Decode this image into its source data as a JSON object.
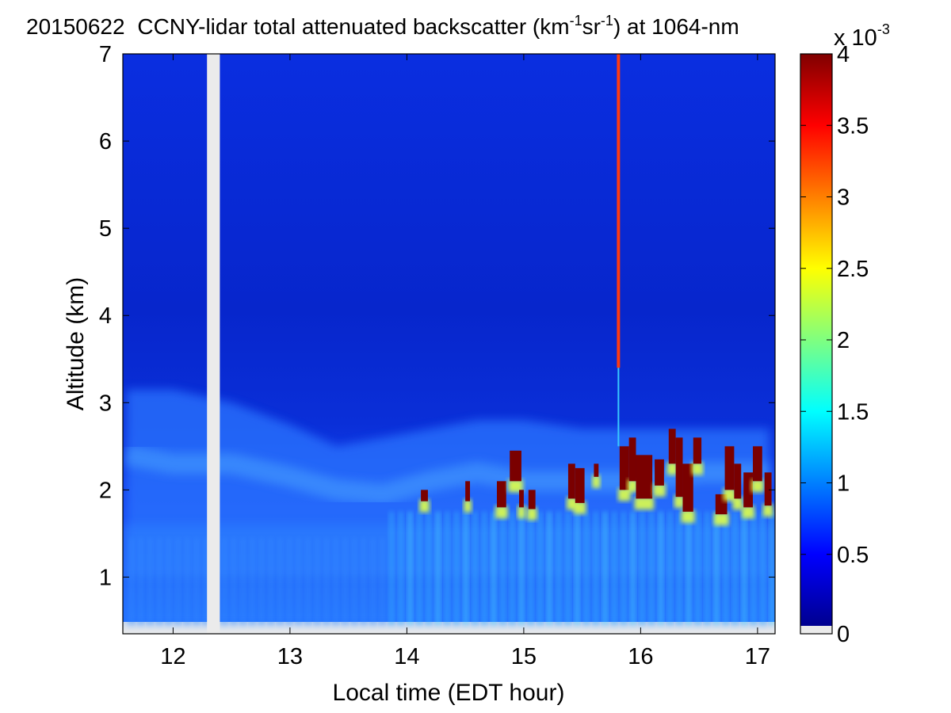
{
  "chart_data": {
    "type": "heatmap",
    "title": {
      "date": "20150622",
      "main": "CCNY-lidar total attenuated backscatter (km",
      "exp1": "-1",
      "mid": "sr",
      "exp2": "-1",
      "tail": ") at 1064-nm"
    },
    "xlabel": "Local time (EDT hour)",
    "ylabel": "Altitude (km)",
    "xlim": [
      11.57,
      17.15
    ],
    "ylim": [
      0.35,
      7
    ],
    "x_ticks": [
      12,
      13,
      14,
      15,
      16,
      17
    ],
    "y_ticks": [
      1,
      2,
      3,
      4,
      5,
      6,
      7
    ],
    "data_gap": [
      12.29,
      12.4
    ],
    "colorbar": {
      "colormap": "jet",
      "min": 0,
      "max": 4,
      "ticks": [
        0,
        0.5,
        1,
        1.5,
        2,
        2.5,
        3,
        3.5,
        4
      ],
      "tick_labels": [
        "0",
        "0.5",
        "1",
        "1.5",
        "2",
        "2.5",
        "3",
        "3.5",
        "4"
      ],
      "multiplier_base": "x 10",
      "multiplier_exp": "-3"
    },
    "features": {
      "boundary_layer_top": [
        [
          11.6,
          3.15
        ],
        [
          12.0,
          3.15
        ],
        [
          12.5,
          3.0
        ],
        [
          13.0,
          2.75
        ],
        [
          13.4,
          2.5
        ],
        [
          13.8,
          2.6
        ],
        [
          14.2,
          2.7
        ],
        [
          14.6,
          2.8
        ],
        [
          15.0,
          2.8
        ],
        [
          15.5,
          2.7
        ],
        [
          16.0,
          2.7
        ],
        [
          16.5,
          2.7
        ],
        [
          17.1,
          2.7
        ]
      ],
      "aerosol_layer_centers": [
        [
          11.6,
          2.4
        ],
        [
          12.0,
          2.3
        ],
        [
          12.5,
          2.3
        ],
        [
          13.0,
          2.15
        ],
        [
          13.4,
          2.0
        ],
        [
          13.8,
          1.95
        ],
        [
          14.2,
          2.1
        ],
        [
          14.6,
          2.2
        ],
        [
          15.0,
          2.1
        ],
        [
          15.5,
          2.1
        ],
        [
          16.0,
          2.1
        ],
        [
          16.5,
          2.2
        ],
        [
          17.1,
          2.2
        ]
      ],
      "clouds": [
        {
          "t0": 14.12,
          "t1": 14.18,
          "base": 1.87,
          "top": 2.0
        },
        {
          "t0": 14.5,
          "t1": 14.54,
          "base": 1.87,
          "top": 2.1
        },
        {
          "t0": 14.77,
          "t1": 14.85,
          "base": 1.8,
          "top": 2.1
        },
        {
          "t0": 14.88,
          "t1": 14.98,
          "base": 2.1,
          "top": 2.45
        },
        {
          "t0": 14.96,
          "t1": 15.0,
          "base": 1.8,
          "top": 2.0
        },
        {
          "t0": 15.04,
          "t1": 15.1,
          "base": 1.78,
          "top": 2.0
        },
        {
          "t0": 15.38,
          "t1": 15.44,
          "base": 1.9,
          "top": 2.3
        },
        {
          "t0": 15.44,
          "t1": 15.52,
          "base": 1.85,
          "top": 2.25
        },
        {
          "t0": 15.6,
          "t1": 15.64,
          "base": 2.15,
          "top": 2.3
        },
        {
          "t0": 15.82,
          "t1": 15.9,
          "base": 2.0,
          "top": 2.5
        },
        {
          "t0": 15.9,
          "t1": 15.96,
          "base": 2.1,
          "top": 2.6
        },
        {
          "t0": 15.96,
          "t1": 16.1,
          "base": 1.9,
          "top": 2.4
        },
        {
          "t0": 16.12,
          "t1": 16.2,
          "base": 2.05,
          "top": 2.35
        },
        {
          "t0": 16.24,
          "t1": 16.3,
          "base": 2.3,
          "top": 2.7
        },
        {
          "t0": 16.3,
          "t1": 16.36,
          "base": 1.92,
          "top": 2.6
        },
        {
          "t0": 16.36,
          "t1": 16.45,
          "base": 1.75,
          "top": 2.3
        },
        {
          "t0": 16.45,
          "t1": 16.52,
          "base": 2.3,
          "top": 2.6
        },
        {
          "t0": 16.64,
          "t1": 16.74,
          "base": 1.72,
          "top": 1.95
        },
        {
          "t0": 16.72,
          "t1": 16.8,
          "base": 2.0,
          "top": 2.5
        },
        {
          "t0": 16.8,
          "t1": 16.86,
          "base": 1.9,
          "top": 2.3
        },
        {
          "t0": 16.88,
          "t1": 16.96,
          "base": 1.8,
          "top": 2.2
        },
        {
          "t0": 16.96,
          "t1": 17.04,
          "base": 2.1,
          "top": 2.5
        },
        {
          "t0": 17.06,
          "t1": 17.12,
          "base": 1.82,
          "top": 2.2
        }
      ],
      "high_backscatter_column_time": 15.81
    }
  }
}
